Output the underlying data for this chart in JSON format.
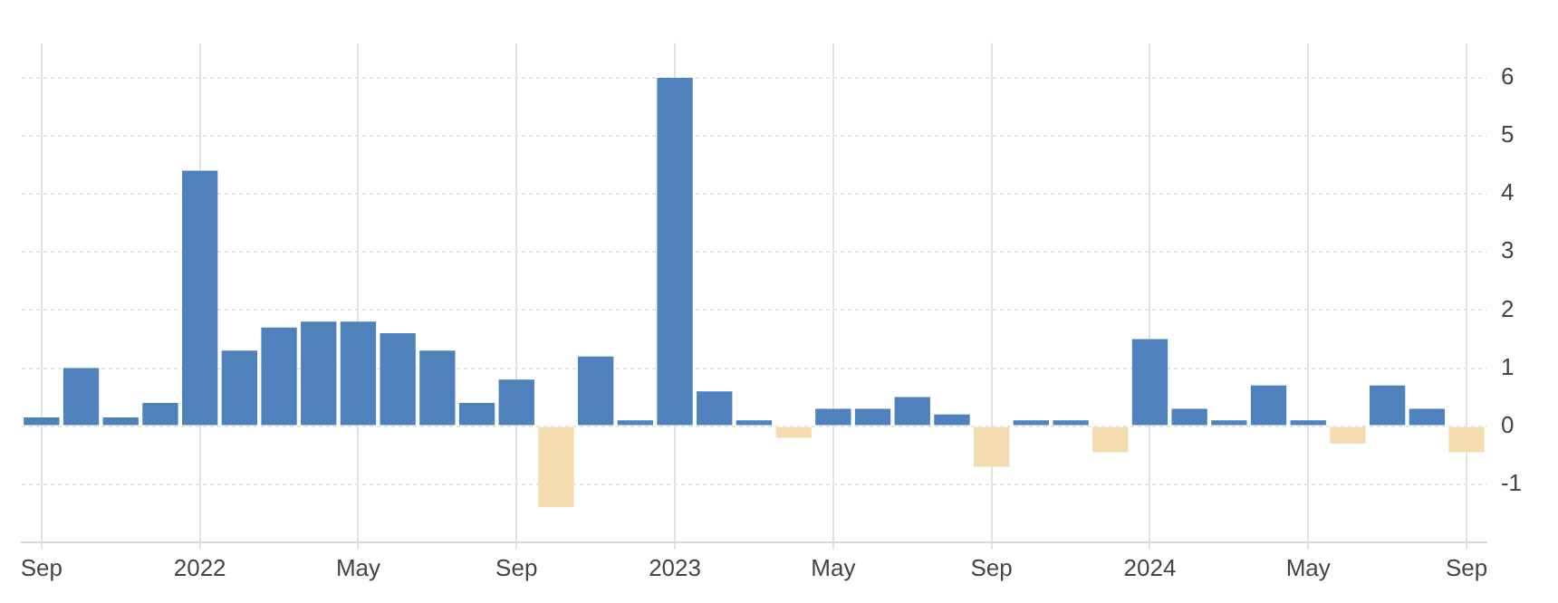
{
  "chart_data": {
    "type": "bar",
    "categories": [
      "Sep",
      null,
      null,
      null,
      "2022",
      null,
      null,
      null,
      "May",
      null,
      null,
      null,
      "Sep",
      null,
      null,
      null,
      "2023",
      null,
      null,
      null,
      "May",
      null,
      null,
      null,
      "Sep",
      null,
      null,
      null,
      "2024",
      null,
      null,
      null,
      "May",
      null,
      null,
      null,
      "Sep"
    ],
    "values": [
      0.15,
      1.0,
      0.15,
      0.4,
      4.4,
      1.3,
      1.7,
      1.8,
      1.8,
      1.6,
      1.3,
      0.4,
      0.8,
      -1.4,
      1.2,
      0.1,
      6.0,
      0.6,
      0.1,
      -0.2,
      0.3,
      0.3,
      0.5,
      0.2,
      -0.7,
      0.1,
      0.1,
      -0.45,
      1.5,
      0.3,
      0.1,
      0.7,
      0.1,
      -0.3,
      0.7,
      0.3,
      -0.45
    ],
    "colors": [
      "#4f81bd",
      "#4f81bd",
      "#4f81bd",
      "#4f81bd",
      "#4f81bd",
      "#4f81bd",
      "#4f81bd",
      "#4f81bd",
      "#4f81bd",
      "#4f81bd",
      "#4f81bd",
      "#4f81bd",
      "#4f81bd",
      "#f3ddb0",
      "#4f81bd",
      "#4f81bd",
      "#4f81bd",
      "#4f81bd",
      "#4f81bd",
      "#f3ddb0",
      "#4f81bd",
      "#4f81bd",
      "#4f81bd",
      "#4f81bd",
      "#f3ddb0",
      "#4f81bd",
      "#4f81bd",
      "#f3ddb0",
      "#4f81bd",
      "#4f81bd",
      "#4f81bd",
      "#4f81bd",
      "#4f81bd",
      "#f3ddb0",
      "#4f81bd",
      "#4f81bd",
      "#f3ddb0"
    ],
    "ylim": [
      -2,
      6.6
    ],
    "yticks": [
      -1,
      0,
      1,
      2,
      3,
      4,
      5,
      6
    ],
    "grid": true
  }
}
